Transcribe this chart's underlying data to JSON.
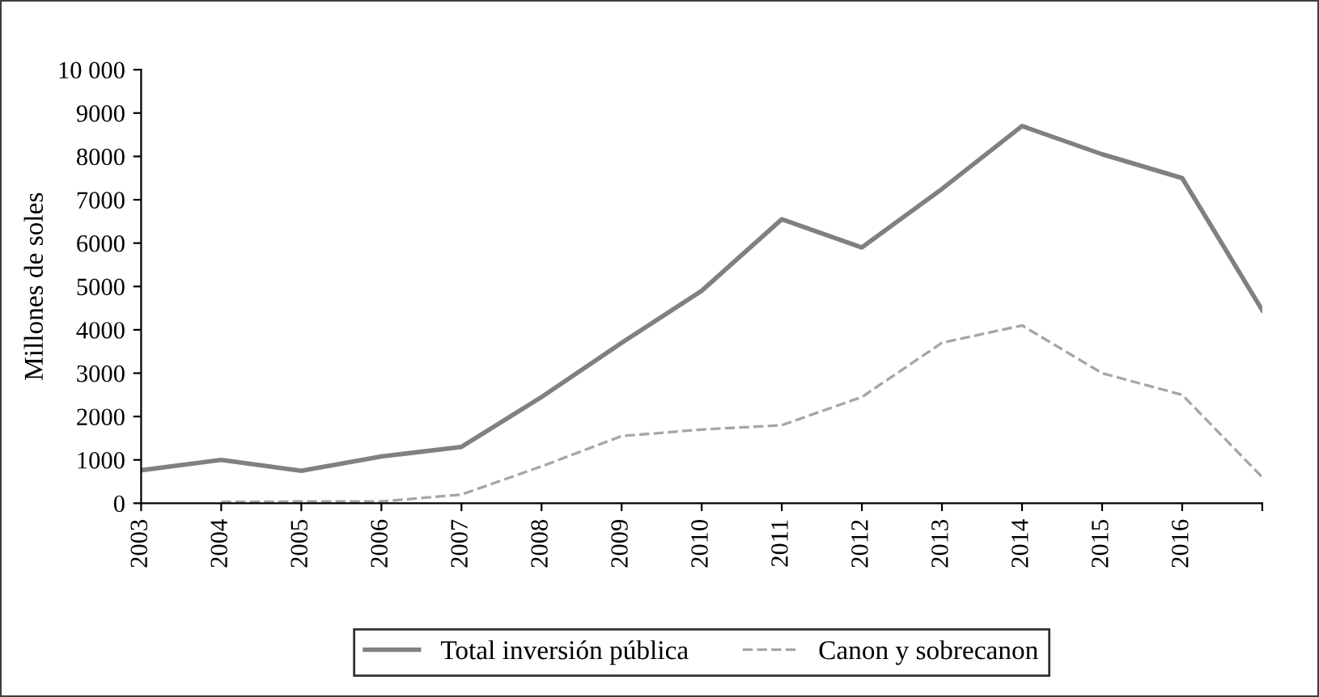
{
  "chart_data": {
    "type": "line",
    "ylabel": "Millones de soles",
    "categories": [
      "2003",
      "2004",
      "2005",
      "2006",
      "2007",
      "2008",
      "2009",
      "2010",
      "2011",
      "2012",
      "2013",
      "2014",
      "2015",
      "2016",
      null
    ],
    "series": [
      {
        "name": "Total inversión pública",
        "color": "#808080",
        "line_style": "solid",
        "values": [
          760,
          1000,
          750,
          1080,
          1300,
          2450,
          3700,
          4900,
          6550,
          5900,
          7250,
          8700,
          8050,
          7500,
          4450
        ]
      },
      {
        "name": "Canon y sobrecanon",
        "color": "#a6a6a6",
        "line_style": "dashed",
        "values": [
          null,
          30,
          40,
          40,
          200,
          850,
          1550,
          1700,
          1800,
          2450,
          3700,
          4100,
          3000,
          2500,
          600
        ]
      }
    ],
    "ylim": [
      0,
      10000
    ],
    "yticks": [
      0,
      1000,
      2000,
      3000,
      4000,
      5000,
      6000,
      7000,
      8000,
      9000,
      {
        "value": 10000,
        "label": "10 000"
      }
    ],
    "grid": false,
    "legend": "bottom",
    "marker": "none"
  }
}
